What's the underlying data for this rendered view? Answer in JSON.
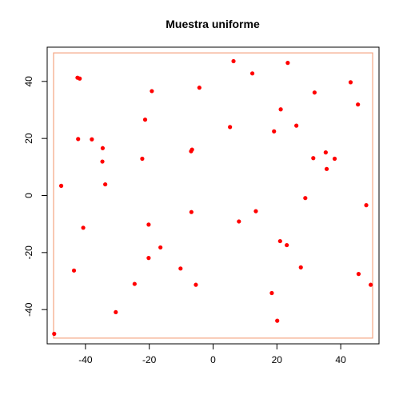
{
  "chart_data": {
    "type": "scatter",
    "title": "Muestra uniforme",
    "xlabel": "",
    "ylabel": "",
    "xlim": [
      -52,
      52
    ],
    "ylim": [
      -52,
      52
    ],
    "x_ticks": [
      -40,
      -20,
      0,
      20,
      40
    ],
    "y_ticks": [
      -40,
      -20,
      0,
      20,
      40
    ],
    "x_tick_labels": [
      "-40",
      "-20",
      "0",
      "20",
      "40"
    ],
    "y_tick_labels": [
      "-40",
      "-20",
      "0",
      "20",
      "40"
    ],
    "grid": false,
    "region": {
      "xmin": -50,
      "xmax": 50,
      "ymin": -50,
      "ymax": 50,
      "color": "#f4a582"
    },
    "point_color": "#ff0000",
    "points": [
      {
        "x": -42.5,
        "y": 41.3
      },
      {
        "x": -41.8,
        "y": 41.0
      },
      {
        "x": 6.4,
        "y": 47.1
      },
      {
        "x": 23.4,
        "y": 46.5
      },
      {
        "x": 12.3,
        "y": 42.8
      },
      {
        "x": 43.1,
        "y": 39.7
      },
      {
        "x": -19.2,
        "y": 36.6
      },
      {
        "x": -4.3,
        "y": 37.8
      },
      {
        "x": 31.8,
        "y": 36.1
      },
      {
        "x": 45.4,
        "y": 31.9
      },
      {
        "x": 21.2,
        "y": 30.2
      },
      {
        "x": -21.3,
        "y": 26.6
      },
      {
        "x": 5.3,
        "y": 24.0
      },
      {
        "x": 26.1,
        "y": 24.5
      },
      {
        "x": 19.1,
        "y": 22.5
      },
      {
        "x": -42.3,
        "y": 19.8
      },
      {
        "x": -38.0,
        "y": 19.7
      },
      {
        "x": -34.6,
        "y": 16.6
      },
      {
        "x": -6.6,
        "y": 16.1
      },
      {
        "x": -6.9,
        "y": 15.5
      },
      {
        "x": 35.3,
        "y": 15.1
      },
      {
        "x": -22.2,
        "y": 12.9
      },
      {
        "x": 31.4,
        "y": 13.1
      },
      {
        "x": 38.1,
        "y": 12.9
      },
      {
        "x": -34.7,
        "y": 11.9
      },
      {
        "x": 35.6,
        "y": 9.3
      },
      {
        "x": -47.6,
        "y": 3.4
      },
      {
        "x": -33.8,
        "y": 3.9
      },
      {
        "x": 28.9,
        "y": -0.9
      },
      {
        "x": 48.0,
        "y": -3.4
      },
      {
        "x": -6.8,
        "y": -5.8
      },
      {
        "x": 13.4,
        "y": -5.5
      },
      {
        "x": -20.2,
        "y": -10.2
      },
      {
        "x": 8.1,
        "y": -9.1
      },
      {
        "x": -40.7,
        "y": -11.3
      },
      {
        "x": 21.0,
        "y": -16.0
      },
      {
        "x": 23.1,
        "y": -17.4
      },
      {
        "x": -16.5,
        "y": -18.2
      },
      {
        "x": -20.2,
        "y": -21.9
      },
      {
        "x": -10.2,
        "y": -25.6
      },
      {
        "x": 27.5,
        "y": -25.2
      },
      {
        "x": -43.6,
        "y": -26.3
      },
      {
        "x": 45.6,
        "y": -27.5
      },
      {
        "x": -24.6,
        "y": -31.0
      },
      {
        "x": -5.4,
        "y": -31.3
      },
      {
        "x": 49.4,
        "y": -31.3
      },
      {
        "x": 18.4,
        "y": -34.2
      },
      {
        "x": -30.5,
        "y": -40.9
      },
      {
        "x": 20.1,
        "y": -43.9
      },
      {
        "x": -49.8,
        "y": -48.5
      }
    ]
  }
}
